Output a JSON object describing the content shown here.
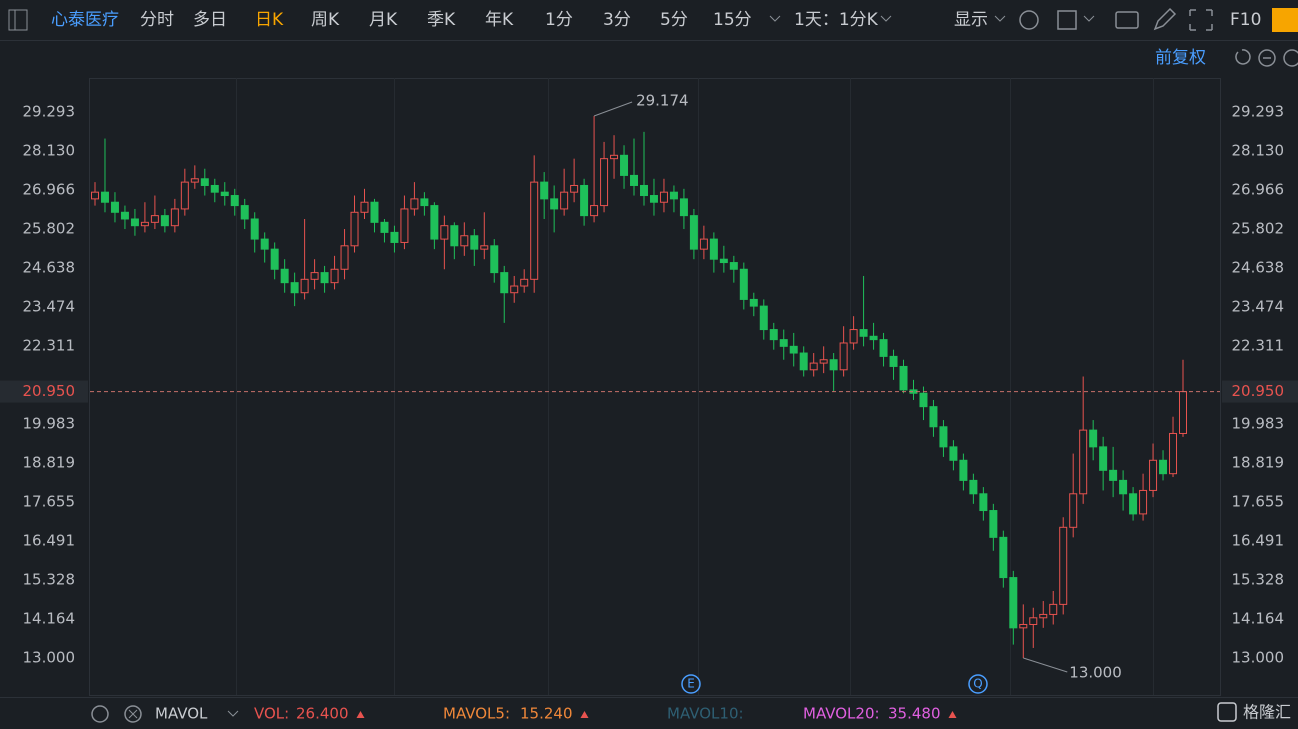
{
  "toolbar": {
    "stock_name": "心泰医疗",
    "periods": [
      "分时",
      "多日",
      "日K",
      "周K",
      "月K",
      "季K",
      "年K",
      "1分",
      "3分",
      "5分",
      "15分"
    ],
    "active_period": "日K",
    "range": "1天：1分K",
    "display": "显示",
    "f10": "F10",
    "adjust": "前复权"
  },
  "chart_data": {
    "type": "candlestick",
    "open": [
      26.7,
      26.9,
      26.6,
      26.3,
      26.1,
      25.9,
      26.0,
      26.2,
      25.9,
      26.4,
      27.2,
      27.3,
      27.1,
      26.9,
      26.8,
      26.5,
      26.1,
      25.5,
      25.2,
      24.6,
      24.2,
      23.9,
      24.3,
      24.5,
      24.2,
      24.6,
      25.3,
      26.3,
      26.6,
      26.0,
      25.7,
      25.4,
      26.4,
      26.7,
      26.5,
      25.5,
      25.9,
      25.3,
      25.6,
      25.2,
      25.3,
      24.5,
      23.9,
      24.1,
      24.3,
      27.2,
      26.7,
      26.4,
      26.9,
      27.1,
      26.2,
      26.5,
      27.9,
      28.0,
      27.4,
      27.1,
      26.8,
      26.6,
      26.9,
      26.7,
      26.2,
      25.2,
      25.5,
      24.9,
      24.8,
      24.6,
      23.7,
      23.5,
      22.8,
      22.5,
      22.3,
      22.1,
      21.6,
      21.8,
      21.9,
      21.6,
      22.4,
      22.8,
      22.6,
      22.5,
      22.0,
      21.7,
      21.0,
      20.9,
      20.5,
      19.9,
      19.3,
      18.9,
      18.3,
      17.9,
      17.4,
      16.6,
      15.4,
      13.9,
      14.0,
      14.2,
      14.3,
      14.6,
      16.9,
      17.9,
      19.8,
      19.3,
      18.6,
      18.3,
      17.9,
      17.3,
      18.0,
      18.9,
      18.5,
      19.7
    ],
    "high": [
      27.2,
      28.5,
      26.9,
      26.5,
      26.4,
      26.6,
      26.8,
      26.4,
      26.7,
      27.6,
      27.7,
      27.6,
      27.3,
      27.2,
      27.0,
      26.7,
      26.3,
      25.7,
      25.4,
      24.9,
      24.5,
      26.1,
      24.9,
      24.7,
      25.0,
      25.8,
      26.8,
      27.0,
      26.7,
      26.1,
      25.9,
      26.8,
      27.2,
      26.9,
      26.6,
      26.2,
      26.0,
      26.0,
      25.8,
      26.3,
      25.5,
      24.7,
      24.4,
      24.6,
      28.0,
      27.5,
      27.1,
      27.6,
      27.9,
      27.3,
      29.174,
      28.4,
      28.6,
      28.3,
      28.5,
      28.7,
      27.3,
      27.3,
      27.1,
      27.0,
      26.4,
      25.9,
      25.7,
      25.3,
      25.0,
      24.8,
      23.9,
      23.7,
      23.0,
      22.8,
      22.7,
      22.3,
      22.1,
      22.3,
      22.1,
      22.9,
      23.2,
      24.4,
      23.0,
      22.7,
      22.2,
      21.9,
      21.3,
      21.1,
      20.7,
      20.1,
      19.5,
      19.1,
      18.5,
      18.1,
      17.6,
      16.8,
      15.6,
      14.6,
      14.5,
      14.7,
      15.0,
      17.2,
      19.1,
      21.4,
      20.1,
      19.6,
      19.3,
      18.6,
      18.1,
      18.5,
      19.4,
      19.2,
      20.2,
      21.9
    ],
    "low": [
      26.5,
      26.3,
      26.0,
      25.8,
      25.6,
      25.7,
      25.8,
      25.7,
      25.7,
      26.2,
      27.0,
      26.8,
      26.6,
      26.5,
      26.2,
      25.8,
      25.1,
      24.8,
      24.3,
      23.9,
      23.5,
      23.7,
      24.0,
      23.9,
      24.0,
      24.3,
      25.1,
      26.1,
      25.7,
      25.4,
      25.1,
      25.2,
      26.2,
      26.2,
      25.2,
      24.6,
      24.9,
      25.0,
      24.7,
      24.9,
      24.2,
      23.0,
      23.6,
      23.9,
      23.9,
      26.1,
      25.7,
      26.2,
      26.6,
      25.9,
      26.0,
      26.3,
      27.3,
      27.0,
      26.8,
      26.5,
      26.2,
      26.3,
      26.3,
      25.8,
      24.9,
      24.9,
      24.5,
      24.5,
      24.2,
      23.4,
      23.2,
      22.5,
      22.2,
      21.9,
      21.7,
      21.4,
      21.4,
      21.5,
      20.95,
      21.4,
      22.2,
      22.3,
      22.2,
      21.7,
      21.3,
      20.9,
      20.7,
      20.1,
      19.6,
      19.0,
      18.6,
      18.0,
      17.6,
      17.1,
      16.2,
      15.1,
      13.4,
      13.0,
      13.3,
      13.9,
      14.0,
      14.3,
      16.6,
      17.6,
      18.9,
      18.0,
      17.8,
      17.4,
      17.1,
      17.1,
      17.8,
      18.3,
      18.4,
      19.6
    ],
    "close": [
      26.9,
      26.6,
      26.3,
      26.1,
      25.9,
      26.0,
      26.2,
      25.9,
      26.4,
      27.2,
      27.3,
      27.1,
      26.9,
      26.8,
      26.5,
      26.1,
      25.5,
      25.2,
      24.6,
      24.2,
      23.9,
      24.3,
      24.5,
      24.2,
      24.6,
      25.3,
      26.3,
      26.6,
      26.0,
      25.7,
      25.4,
      26.4,
      26.7,
      26.5,
      25.5,
      25.9,
      25.3,
      25.6,
      25.2,
      25.3,
      24.5,
      23.9,
      24.1,
      24.3,
      27.2,
      26.7,
      26.4,
      26.9,
      27.1,
      26.2,
      26.5,
      27.9,
      28.0,
      27.4,
      27.1,
      26.8,
      26.6,
      26.9,
      26.7,
      26.2,
      25.2,
      25.5,
      24.9,
      24.8,
      24.6,
      23.7,
      23.5,
      22.8,
      22.5,
      22.3,
      22.1,
      21.6,
      21.8,
      21.9,
      21.6,
      22.4,
      22.8,
      22.6,
      22.5,
      22.0,
      21.7,
      21.0,
      20.9,
      20.5,
      19.9,
      19.3,
      18.9,
      18.3,
      17.9,
      17.4,
      16.6,
      15.4,
      13.9,
      14.0,
      14.2,
      14.3,
      14.6,
      16.9,
      17.9,
      19.8,
      19.3,
      18.6,
      18.3,
      17.9,
      17.3,
      18.0,
      18.9,
      18.5,
      19.7,
      20.95
    ],
    "up_color": "#e8534f",
    "down_color": "#1fc05a",
    "ylim": [
      11.896,
      30.307
    ],
    "yticks": [
      29.293,
      {
        "value": 28.13,
        "label": "28.130"
      },
      26.966,
      25.802,
      24.638,
      23.474,
      22.311,
      19.983,
      18.819,
      17.655,
      16.491,
      15.328,
      14.164,
      {
        "value": 13,
        "label": "13.000"
      }
    ],
    "last_price": {
      "value": 20.95,
      "label": "20.950"
    },
    "max_label": 29.174,
    "min_label": {
      "value": 13,
      "label": "13.000"
    },
    "event_markers": [
      "E",
      "Q"
    ]
  },
  "indicator_bar": {
    "name": "MAVOL",
    "items": [
      {
        "label": "VOL:",
        "value": "26.400"
      },
      {
        "label": "MAVOL5:",
        "value": "15.240"
      },
      {
        "label": "MAVOL10:"
      },
      {
        "label": "MAVOL20:",
        "value": "35.480"
      }
    ]
  },
  "watermark": "格隆汇"
}
